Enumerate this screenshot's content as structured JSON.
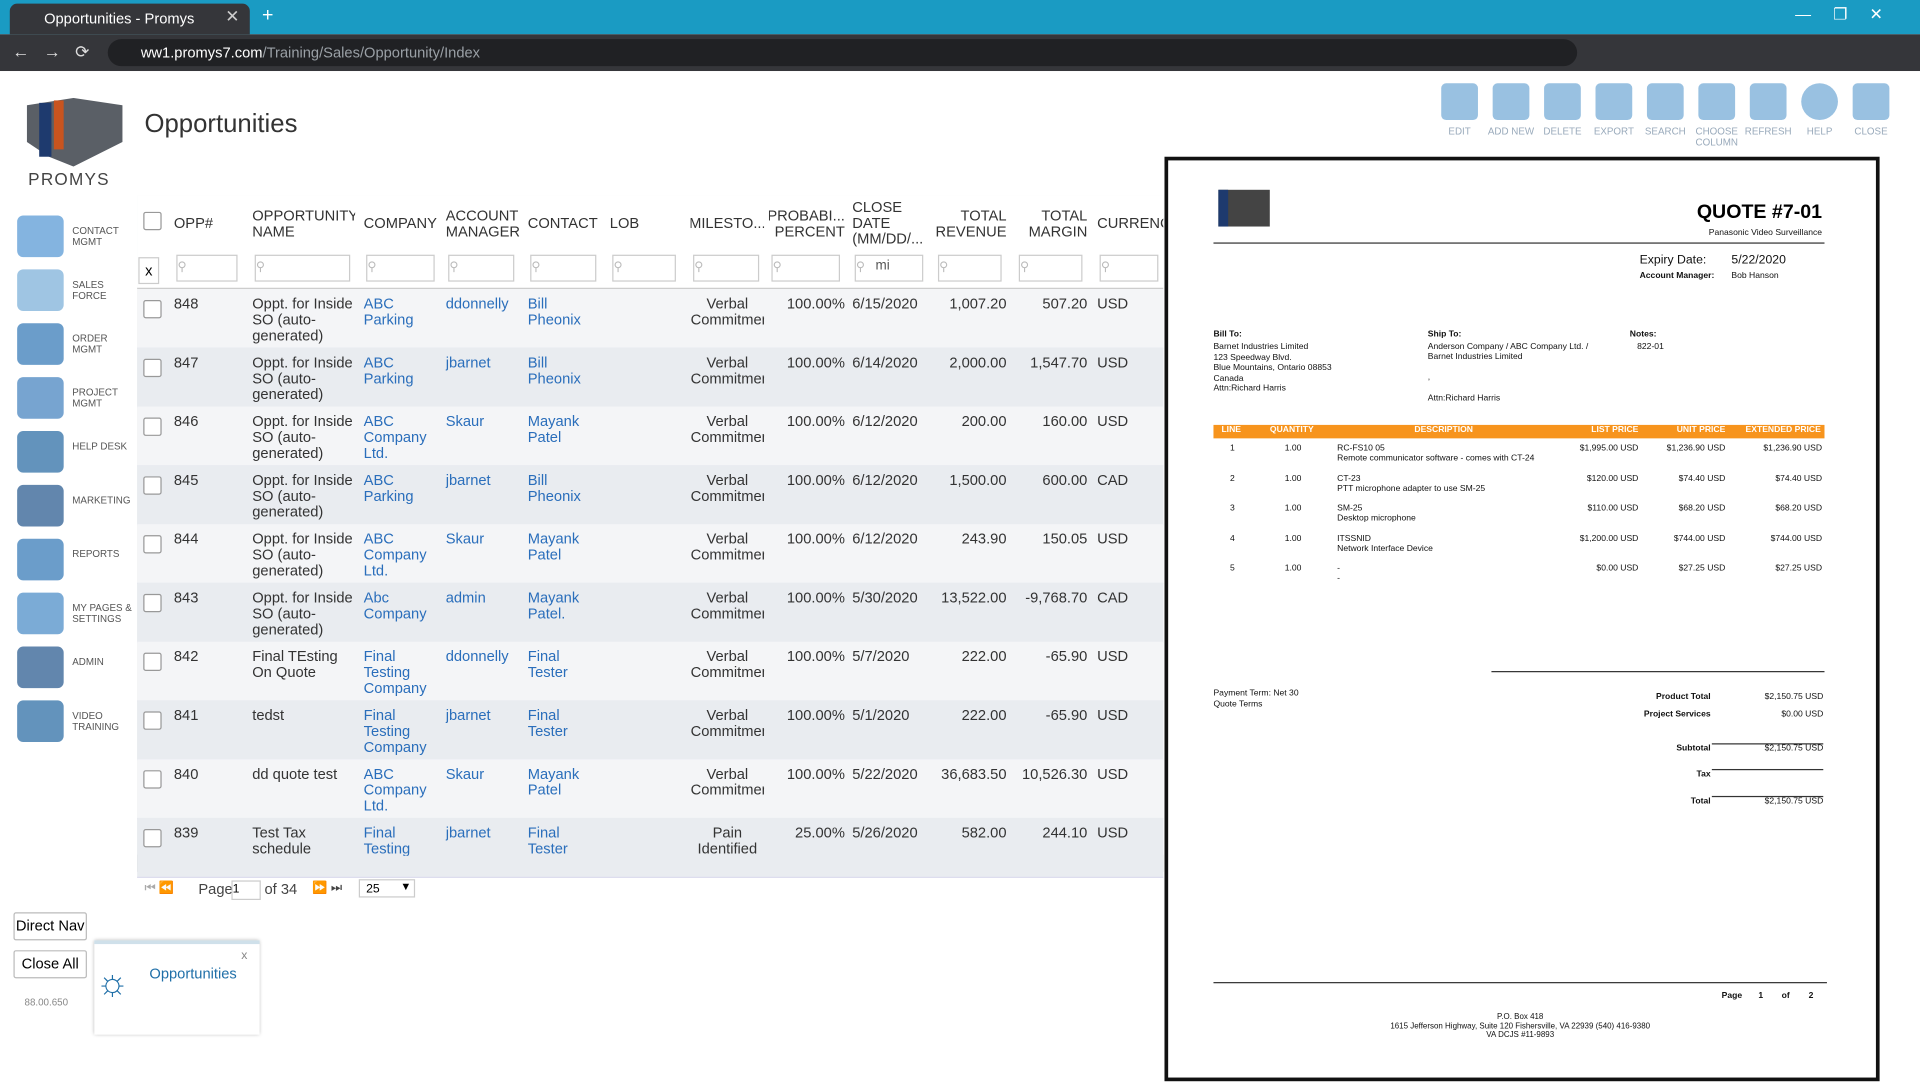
{
  "browser": {
    "tab_title": "Opportunities - Promys",
    "url_host": "ww1.promys7.com",
    "url_path": "/Training/Sales/Opportunity/Index"
  },
  "app": {
    "logo": "PROMYS",
    "page_title": "Opportunities"
  },
  "nav": [
    "CONTACT MGMT",
    "SALES FORCE",
    "ORDER MGMT",
    "PROJECT MGMT",
    "HELP DESK",
    "MARKETING",
    "REPORTS",
    "MY PAGES & SETTINGS",
    "ADMIN",
    "VIDEO TRAINING"
  ],
  "toolbar": [
    "EDIT",
    "ADD NEW",
    "DELETE",
    "EXPORT",
    "SEARCH",
    "CHOOSE COLUMN",
    "REFRESH",
    "HELP",
    "CLOSE"
  ],
  "table": {
    "columns": [
      "OPP#",
      "OPPORTUNITY NAME",
      "COMPANY",
      "ACCOUNT MANAGER",
      "CONTACT",
      "LOB",
      "MILESTO...",
      "PROBABI... PERCENT",
      "CLOSE DATE (MM/DD/...",
      "TOTAL REVENUE",
      "TOTAL MARGIN",
      "CURRENCY"
    ],
    "filter_clear": "x",
    "date_filter_text": "mi",
    "rows": [
      [
        "848",
        "Oppt. for Inside SO (auto-generated)",
        "ABC Parking",
        "ddonnelly",
        "Bill Pheonix",
        "Verbal Commitment",
        "100.00%",
        "6/15/2020",
        "1,007.20",
        "507.20",
        "USD"
      ],
      [
        "847",
        "Oppt. for Inside SO (auto-generated)",
        "ABC Parking",
        "jbarnet",
        "Bill Pheonix",
        "Verbal Commitment",
        "100.00%",
        "6/14/2020",
        "2,000.00",
        "1,547.70",
        "USD"
      ],
      [
        "846",
        "Oppt. for Inside SO (auto-generated)",
        "ABC Company Ltd.",
        "Skaur",
        "Mayank Patel",
        "Verbal Commitment",
        "100.00%",
        "6/12/2020",
        "200.00",
        "160.00",
        "USD"
      ],
      [
        "845",
        "Oppt. for Inside SO (auto-generated)",
        "ABC Parking",
        "jbarnet",
        "Bill Pheonix",
        "Verbal Commitment",
        "100.00%",
        "6/12/2020",
        "1,500.00",
        "600.00",
        "CAD"
      ],
      [
        "844",
        "Oppt. for Inside SO (auto-generated)",
        "ABC Company Ltd.",
        "Skaur",
        "Mayank Patel",
        "Verbal Commitment",
        "100.00%",
        "6/12/2020",
        "243.90",
        "150.05",
        "USD"
      ],
      [
        "843",
        "Oppt. for Inside SO (auto-generated)",
        "Abc Company",
        "admin",
        "Mayank Patel.",
        "Verbal Commitment",
        "100.00%",
        "5/30/2020",
        "13,522.00",
        "-9,768.70",
        "CAD"
      ],
      [
        "842",
        "Final TEsting On Quote",
        "Final Testing Company",
        "ddonnelly",
        "Final Tester",
        "Verbal Commitment",
        "100.00%",
        "5/7/2020",
        "222.00",
        "-65.90",
        "USD"
      ],
      [
        "841",
        "tedst",
        "Final Testing Company",
        "jbarnet",
        "Final Tester",
        "Verbal Commitment",
        "100.00%",
        "5/1/2020",
        "222.00",
        "-65.90",
        "USD"
      ],
      [
        "840",
        "dd quote test",
        "ABC Company Ltd.",
        "Skaur",
        "Mayank Patel",
        "Verbal Commitment",
        "100.00%",
        "5/22/2020",
        "36,683.50",
        "10,526.30",
        "USD"
      ],
      [
        "839",
        "Test Tax schedule",
        "Final Testing",
        "jbarnet",
        "Final Tester",
        "Pain Identified",
        "25.00%",
        "5/26/2020",
        "582.00",
        "244.10",
        "USD"
      ]
    ]
  },
  "pager": {
    "page_label": "Page",
    "page": "1",
    "of": "of 34",
    "size": "25"
  },
  "footer": {
    "direct_nav": "Direct Nav",
    "close_all": "Close All",
    "version": "88.00.650",
    "task": "Opportunities",
    "task_close": "x"
  },
  "quote": {
    "title": "QUOTE #7-01",
    "subtitle": "Panasonic Video Surveillance",
    "expiry_label": "Expiry Date:",
    "expiry": "5/22/2020",
    "manager_label": "Account Manager:",
    "manager": "Bob Hanson",
    "bill_to_label": "Bill To:",
    "bill_to": [
      "Barnet Industries Limited",
      "123 Speedway Blvd.",
      "Blue Mountains, Ontario 08853",
      "Canada",
      "Attn:Richard Harris"
    ],
    "ship_to_label": "Ship To:",
    "ship_to": [
      "Anderson Company / ABC Company Ltd. /",
      "Barnet Industries Limited",
      ",",
      "Attn:Richard Harris"
    ],
    "notes_label": "Notes:",
    "notes": "822-01",
    "item_columns": [
      "LINE",
      "QUANTITY",
      "DESCRIPTION",
      "LIST PRICE",
      "UNIT PRICE",
      "EXTENDED PRICE"
    ],
    "items": [
      [
        "1",
        "1.00",
        "RC-FS10 05",
        "Remote communicator software - comes with CT-24",
        "$1,995.00 USD",
        "$1,236.90 USD",
        "$1,236.90 USD"
      ],
      [
        "2",
        "1.00",
        "CT-23",
        "PTT microphone adapter to use SM-25",
        "$120.00 USD",
        "$74.40 USD",
        "$74.40 USD"
      ],
      [
        "3",
        "1.00",
        "SM-25",
        "Desktop microphone",
        "$110.00 USD",
        "$68.20 USD",
        "$68.20 USD"
      ],
      [
        "4",
        "1.00",
        "ITSSNID",
        "Network Interface Device",
        "$1,200.00 USD",
        "$744.00 USD",
        "$744.00 USD"
      ],
      [
        "5",
        "1.00",
        "-",
        "-",
        "$0.00 USD",
        "$27.25 USD",
        "$27.25 USD"
      ]
    ],
    "payment_term": "Payment Term: Net 30",
    "quote_terms": "Quote Terms",
    "totals": [
      [
        "Product Total",
        "$2,150.75 USD"
      ],
      [
        "Project Services",
        "$0.00 USD"
      ],
      [
        "Subtotal",
        "$2,150.75 USD"
      ],
      [
        "Tax"
      ],
      [
        "Total",
        "$2,150.75 USD"
      ]
    ],
    "page_label": "Page",
    "page": "1",
    "of": "of",
    "pages": "2",
    "address": [
      "P.O. Box 418",
      "1615 Jefferson Highway, Suite 120 Fishersville, VA 22939 (540) 416-9380",
      "VA DCJS #11-9893"
    ]
  }
}
